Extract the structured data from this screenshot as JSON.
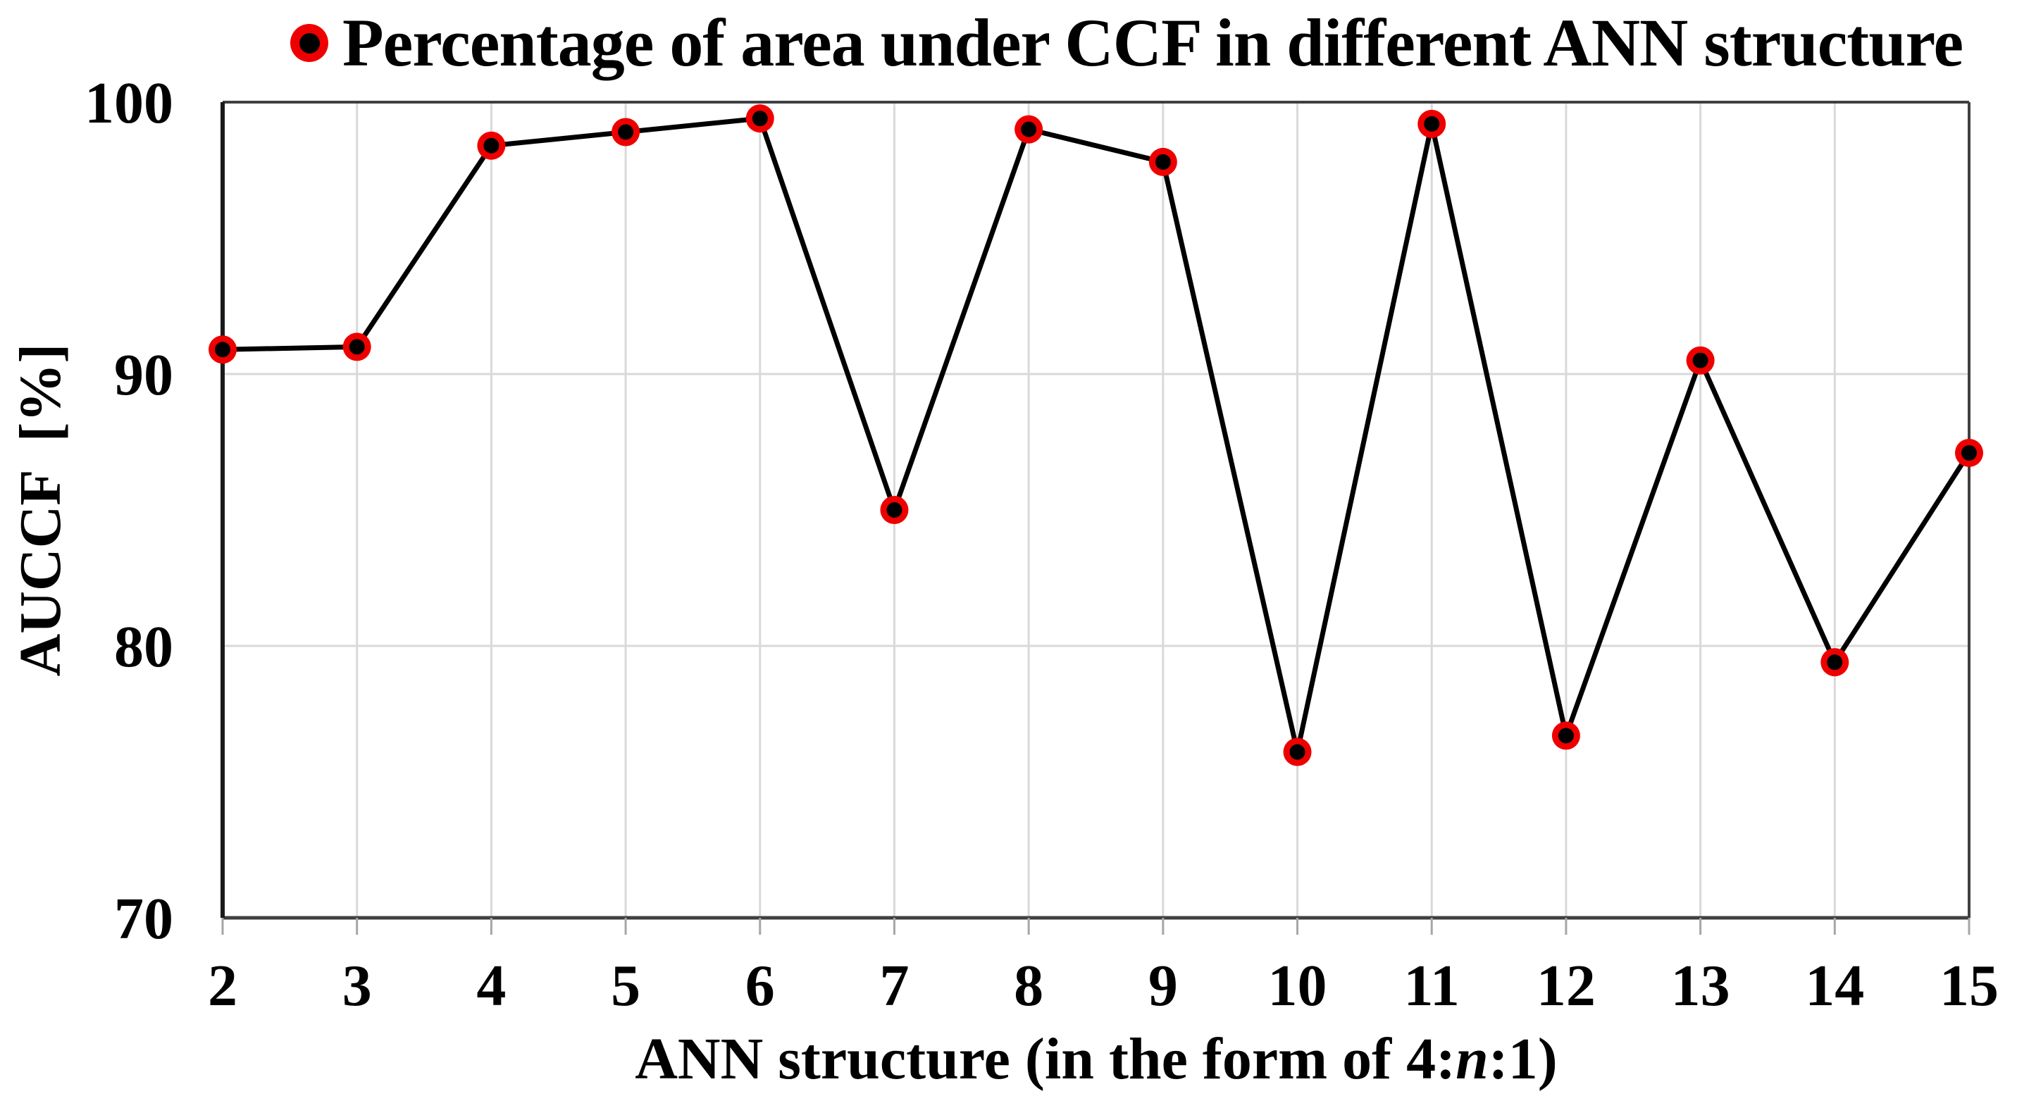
{
  "title": {
    "text": "Percentage of area under CCF in different ANN structure"
  },
  "legend": {
    "marker": "red-ring-black-core-circle"
  },
  "y_axis": {
    "label": "AUCCF  [%]",
    "ticks": [
      "100",
      "90",
      "80",
      "70"
    ]
  },
  "x_axis": {
    "label_prefix": "ANN structure (in the form of 4:",
    "label_n": "n",
    "label_suffix": ":1)",
    "ticks": [
      "2",
      "3",
      "4",
      "5",
      "6",
      "7",
      "8",
      "9",
      "10",
      "11",
      "12",
      "13",
      "14",
      "15"
    ]
  },
  "chart_data": {
    "type": "line",
    "title": "Percentage of area under CCF in different ANN structure",
    "xlabel": "ANN structure (in the form of 4:n:1)",
    "ylabel": "AUCCF [%]",
    "x": [
      2,
      3,
      4,
      5,
      6,
      7,
      8,
      9,
      10,
      11,
      12,
      13,
      14,
      15
    ],
    "series": [
      {
        "name": "Percentage of area under CCF in different ANN structure",
        "values": [
          90.9,
          91.0,
          98.4,
          98.9,
          99.4,
          85.0,
          99.0,
          97.8,
          76.1,
          99.2,
          76.7,
          90.5,
          79.4,
          87.1
        ]
      }
    ],
    "xlim": [
      2,
      15
    ],
    "ylim": [
      70,
      100
    ],
    "y_tick_step": 10,
    "grid": true,
    "legend_position": "top-center",
    "marker": "circle",
    "colors": {
      "line": "#000000",
      "marker_ring": "#ee0000",
      "marker_core": "#000000",
      "gridline": "#d9d9d9",
      "frame": "#404040",
      "left_axis": "#1a1a1a",
      "tick_mark": "#a6a6a6",
      "text": "#000000",
      "background": "#ffffff"
    }
  }
}
